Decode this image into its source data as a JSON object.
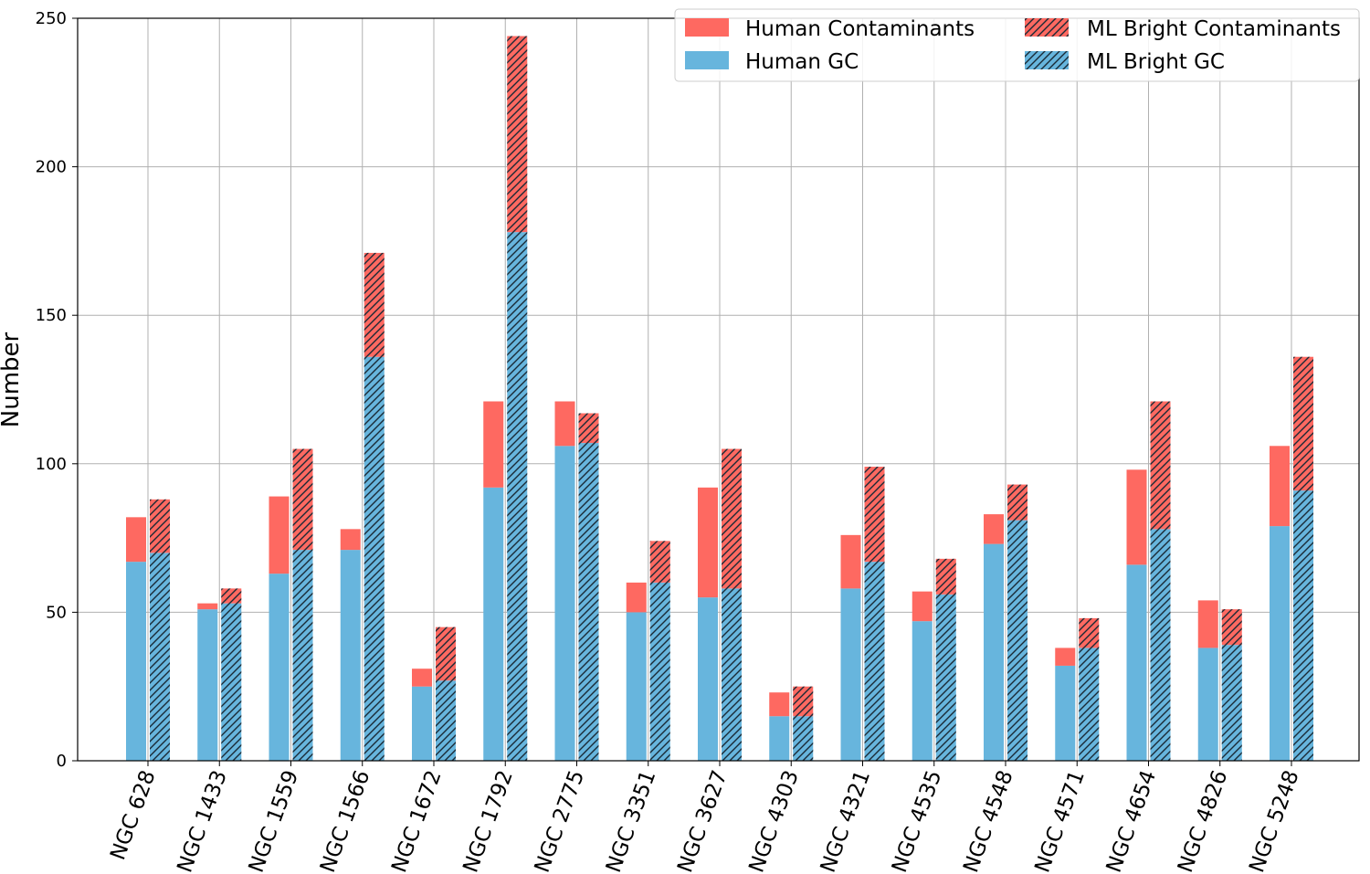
{
  "chart_data": {
    "type": "bar",
    "stacked": true,
    "grouped": true,
    "ylabel": "Number",
    "xlabel": "",
    "ylim": [
      0,
      250
    ],
    "yticks": [
      0,
      50,
      100,
      150,
      200,
      250
    ],
    "grid": true,
    "legend_position": "top-right",
    "categories": [
      "NGC 628",
      "NGC 1433",
      "NGC 1559",
      "NGC 1566",
      "NGC 1672",
      "NGC 1792",
      "NGC 2775",
      "NGC 3351",
      "NGC 3627",
      "NGC 4303",
      "NGC 4321",
      "NGC 4535",
      "NGC 4548",
      "NGC 4571",
      "NGC 4654",
      "NGC 4826",
      "NGC 5248"
    ],
    "series": [
      {
        "name": "Human GC",
        "group": "Human",
        "color": "#67b5dd",
        "hatched": false,
        "values": [
          67,
          51,
          63,
          71,
          25,
          92,
          106,
          50,
          55,
          15,
          58,
          47,
          73,
          32,
          66,
          38,
          79
        ]
      },
      {
        "name": "Human Contaminants",
        "group": "Human",
        "color": "#fe6961",
        "hatched": false,
        "values": [
          15,
          2,
          26,
          7,
          6,
          29,
          15,
          10,
          37,
          8,
          18,
          10,
          10,
          6,
          32,
          16,
          27
        ]
      },
      {
        "name": "ML Bright GC",
        "group": "ML",
        "color": "#67b5dd",
        "hatched": true,
        "values": [
          70,
          53,
          71,
          136,
          27,
          178,
          107,
          60,
          58,
          15,
          67,
          56,
          81,
          38,
          78,
          39,
          91
        ]
      },
      {
        "name": "ML Bright Contaminants",
        "group": "ML",
        "color": "#fe6961",
        "hatched": true,
        "values": [
          18,
          5,
          34,
          35,
          18,
          66,
          10,
          14,
          47,
          10,
          32,
          12,
          12,
          10,
          43,
          12,
          45
        ]
      }
    ],
    "legend": {
      "col1": [
        "Human Contaminants",
        "Human GC"
      ],
      "col2": [
        "ML Bright Contaminants",
        "ML Bright GC"
      ]
    }
  }
}
